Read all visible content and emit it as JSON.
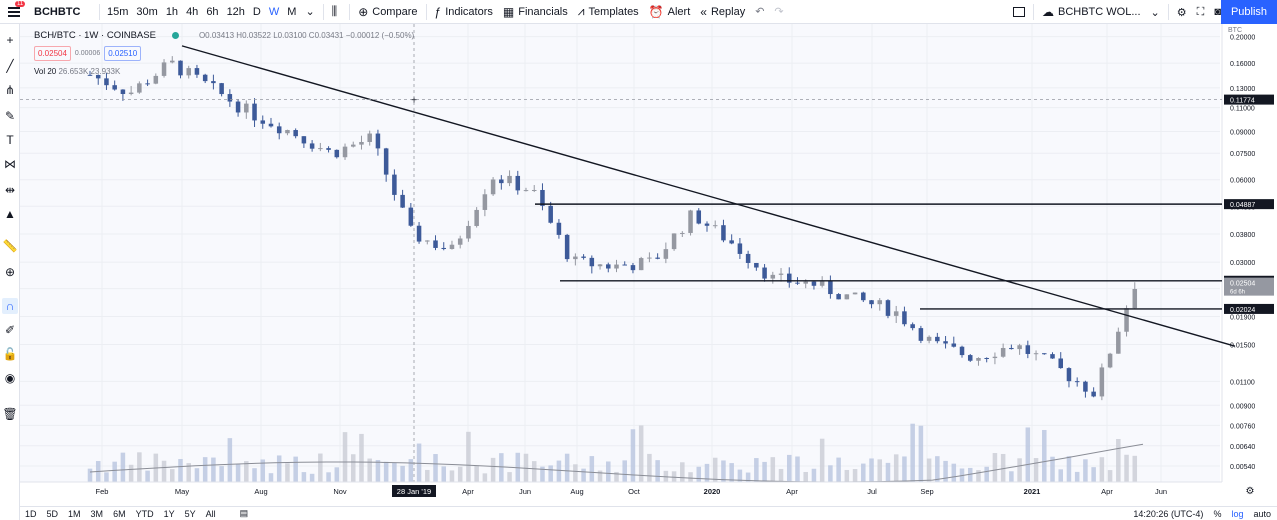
{
  "toolbar": {
    "menu_badge": "11",
    "symbol": "BCHBTC",
    "intervals": [
      "15m",
      "30m",
      "1h",
      "4h",
      "6h",
      "12h",
      "D",
      "W",
      "M"
    ],
    "active_interval": "W",
    "compare": "Compare",
    "indicators": "Indicators",
    "financials": "Financials",
    "templates": "Templates",
    "alert": "Alert",
    "replay": "Replay",
    "layout_name": "BCHBTC WOL...",
    "publish": "Publish"
  },
  "legend": {
    "title": "BCH/BTC · 1W · COINBASE",
    "ohlc": "O0.03413 H0.03522 L0.03100 C0.03431 −0.00012 (−0.50%)",
    "sell": "0.02504",
    "spread": "0.00006",
    "buy": "0.02510",
    "volume_label": "Vol 20",
    "volume_values": "26.653K 23.933K"
  },
  "price_scale": {
    "currency": "BTC",
    "ticks": [
      "0.20000",
      "0.16000",
      "0.13000",
      "0.11000",
      "0.09000",
      "0.07500",
      "0.06000",
      "0.04800",
      "0.03800",
      "0.03000",
      "0.02400",
      "0.01900",
      "0.01500",
      "0.01100",
      "0.00900",
      "0.00760",
      "0.00640",
      "0.00540"
    ],
    "crosshair_label": "0.11774",
    "line_labels": [
      "0.04887",
      "0.02565",
      "0.02024"
    ],
    "last_price": "0.02504",
    "countdown": "6d 6h"
  },
  "time_scale": {
    "labels": [
      "Feb",
      "May",
      "Aug",
      "Nov",
      "Apr",
      "Jun",
      "Aug",
      "Oct",
      "2020",
      "Apr",
      "Jul",
      "Sep",
      "2021",
      "Apr",
      "Jun"
    ],
    "crosshair_label": "28 Jan '19"
  },
  "bottom": {
    "ranges": [
      "1D",
      "5D",
      "1M",
      "3M",
      "6M",
      "YTD",
      "1Y",
      "5Y",
      "All"
    ],
    "time": "14:20:26 (UTC-4)",
    "percent": "%",
    "log": "log",
    "auto": "auto"
  },
  "chart_data": {
    "type": "candlestick",
    "title": "BCH/BTC · 1W · COINBASE",
    "ylabel": "BTC",
    "y_scale": "log",
    "ylim": [
      0.0048,
      0.23
    ],
    "x_range": [
      "Jan 2019",
      "Jun 2021"
    ],
    "series": [
      {
        "name": "price_close_approx",
        "x": [
          "Jan 2019",
          "Mar 2019",
          "May 2019",
          "Jun 2019",
          "Aug 2019",
          "Oct 2019",
          "Nov 2019",
          "Dec 2019",
          "Feb 2019 end",
          "Mar 2019 end",
          "Apr 2019 (2nd yr)",
          "Jun 2019 (2nd yr)",
          "Aug 2019 (2nd yr)",
          "Oct 2019 (2nd yr)",
          "Jan 2020",
          "Feb 2020",
          "Mar 2020",
          "May 2020",
          "Jul 2020",
          "Sep 2020",
          "Oct 2020",
          "Dec 2020",
          "Jan 2021",
          "Feb 2021",
          "Mar 2021",
          "Apr 2021",
          "May 2021"
        ],
        "values": [
          0.145,
          0.125,
          0.16,
          0.13,
          0.105,
          0.09,
          0.075,
          0.085,
          0.038,
          0.033,
          0.062,
          0.055,
          0.03,
          0.029,
          0.03,
          0.045,
          0.035,
          0.026,
          0.025,
          0.022,
          0.02,
          0.015,
          0.0135,
          0.015,
          0.0125,
          0.01,
          0.025
        ]
      }
    ],
    "volume": {
      "ma_label": "Vol 20"
    },
    "drawings": {
      "horizontal_lines": [
        0.04887,
        0.02565,
        0.02024
      ],
      "trendline": "descending from May 2019 high to Jun 2021"
    },
    "grid": true,
    "legend": "top-left"
  }
}
